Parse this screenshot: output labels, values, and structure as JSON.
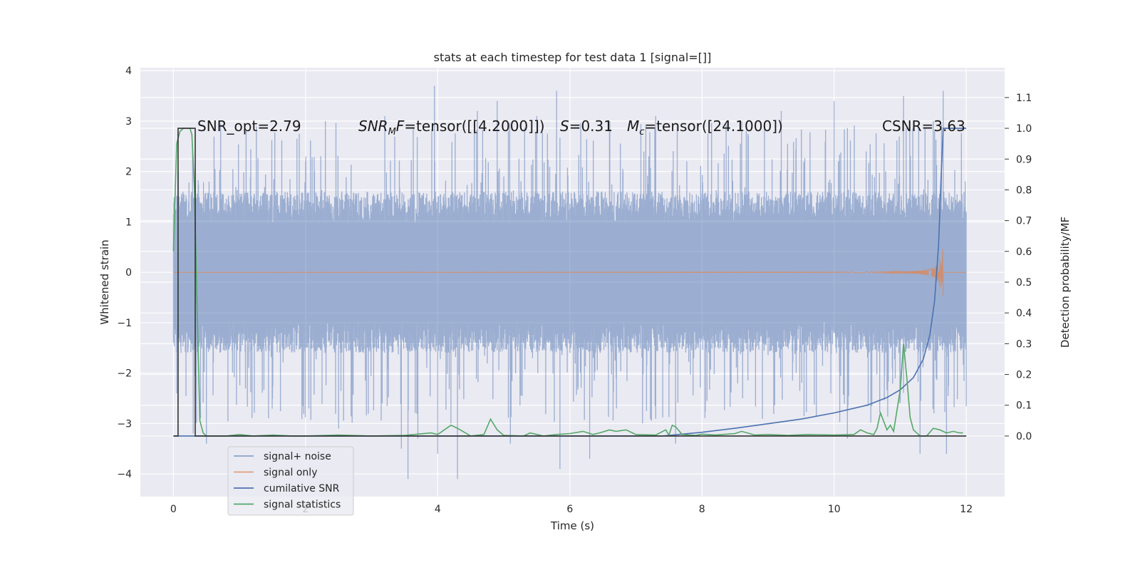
{
  "chart_data": {
    "type": "line",
    "title": "stats at each timestep for test data 1 [signal=[]]",
    "xlabel": "Time (s)",
    "ylabel_left": "Whitened strain",
    "ylabel_right": "Detection probability/MF",
    "xlim": [
      -0.5,
      12.58
    ],
    "ylim_left": [
      -4.45,
      4.06
    ],
    "ylim_right": [
      -0.197,
      1.197
    ],
    "x_ticks": [
      0,
      2,
      4,
      6,
      8,
      10,
      12
    ],
    "y_ticks_left": [
      -4,
      -3,
      -2,
      -1,
      0,
      1,
      2,
      3,
      4
    ],
    "y_ticks_right": [
      0.0,
      0.1,
      0.2,
      0.3,
      0.4,
      0.5,
      0.6,
      0.7,
      0.8,
      0.9,
      1.0,
      1.1
    ],
    "grid": true,
    "legend_placement": "lower-left",
    "annotations": {
      "snr_opt": "SNR_opt=2.79",
      "snr_mf_sym": "SNR",
      "snr_mf_sub": "M",
      "snr_mf_f": "F",
      "snr_mf_val": "=tensor([[4.2000]])",
      "s_sym": "S",
      "s_val": "=0.31",
      "mc_sym": "M",
      "mc_sub": "c",
      "mc_val": "=tensor([24.1000])",
      "csnr": "CSNR=3.63"
    },
    "series": [
      {
        "name": "signal+ noise",
        "axis": "left",
        "color": "#4c72b0",
        "alpha": 0.5,
        "t_range": [
          0,
          12
        ],
        "typical_range": [
          -1.6,
          1.6
        ],
        "peaks": [
          [
            0.05,
            -2.4
          ],
          [
            0.3,
            -3.2
          ],
          [
            0.5,
            -3.4
          ],
          [
            1.1,
            2.8
          ],
          [
            2.05,
            -2.7
          ],
          [
            2.3,
            3.0
          ],
          [
            2.5,
            -3.1
          ],
          [
            3.2,
            3.1
          ],
          [
            3.45,
            -3.5
          ],
          [
            3.55,
            -4.1
          ],
          [
            3.7,
            -3.3
          ],
          [
            3.95,
            3.7
          ],
          [
            4.0,
            -3.6
          ],
          [
            4.2,
            -3.0
          ],
          [
            4.3,
            -4.1
          ],
          [
            4.6,
            3.2
          ],
          [
            4.9,
            3.4
          ],
          [
            5.1,
            -3.4
          ],
          [
            5.5,
            3.1
          ],
          [
            5.8,
            3.6
          ],
          [
            5.85,
            -3.9
          ],
          [
            6.3,
            -3.7
          ],
          [
            6.6,
            3.0
          ],
          [
            7.1,
            -3.0
          ],
          [
            7.3,
            3.1
          ],
          [
            7.6,
            -3.4
          ],
          [
            8.6,
            3.0
          ],
          [
            9.2,
            3.2
          ],
          [
            10.0,
            3.4
          ],
          [
            10.2,
            -3.3
          ],
          [
            11.05,
            3.5
          ],
          [
            11.3,
            -3.6
          ],
          [
            11.5,
            3.0
          ],
          [
            11.65,
            3.6
          ],
          [
            11.7,
            -3.6
          ]
        ]
      },
      {
        "name": "signal only",
        "axis": "left",
        "color": "#dd8452",
        "chirp": {
          "t_end": 11.65,
          "peak_amplitude": 0.65
        }
      },
      {
        "name": "cumilative SNR",
        "axis": "right",
        "color": "#4c72b0",
        "x": [
          0,
          7.4,
          8.0,
          8.5,
          9.0,
          9.5,
          10.0,
          10.5,
          10.8,
          11.0,
          11.2,
          11.35,
          11.45,
          11.52,
          11.58,
          11.62,
          11.65,
          11.66,
          12.0
        ],
        "y": [
          0.0,
          0.0,
          0.012,
          0.025,
          0.04,
          0.055,
          0.075,
          0.1,
          0.125,
          0.15,
          0.19,
          0.25,
          0.33,
          0.44,
          0.62,
          0.85,
          1.0,
          1.0,
          1.0
        ]
      },
      {
        "name": "signal statistics",
        "axis": "right",
        "color": "#55a868",
        "x": [
          0.0,
          0.05,
          0.1,
          0.15,
          0.2,
          0.25,
          0.28,
          0.32,
          0.36,
          0.4,
          0.45,
          0.5,
          0.6,
          0.8,
          1.0,
          1.2,
          1.5,
          1.8,
          2.0,
          2.5,
          3.0,
          3.5,
          3.9,
          4.0,
          4.1,
          4.2,
          4.3,
          4.5,
          4.7,
          4.8,
          4.9,
          5.0,
          5.3,
          5.4,
          5.6,
          5.8,
          6.0,
          6.2,
          6.35,
          6.45,
          6.6,
          6.7,
          6.85,
          7.0,
          7.3,
          7.45,
          7.5,
          7.55,
          7.6,
          7.7,
          7.9,
          8.0,
          8.2,
          8.5,
          8.6,
          8.8,
          9.0,
          9.3,
          9.6,
          10.0,
          10.3,
          10.4,
          10.5,
          10.6,
          10.65,
          10.7,
          10.8,
          10.85,
          10.9,
          11.0,
          11.05,
          11.1,
          11.15,
          11.2,
          11.3,
          11.4,
          11.5,
          11.6,
          11.7,
          11.8,
          11.9,
          11.95
        ],
        "y": [
          0.6,
          0.95,
          0.99,
          1.0,
          1.0,
          1.0,
          0.98,
          0.8,
          0.4,
          0.05,
          0.01,
          0.0,
          0.0,
          0.0,
          0.005,
          0.0,
          0.003,
          0.0,
          0.0,
          0.003,
          0.0,
          0.002,
          0.01,
          0.005,
          0.02,
          0.035,
          0.025,
          0.0,
          0.005,
          0.055,
          0.02,
          0.002,
          0.0,
          0.01,
          0.0,
          0.005,
          0.008,
          0.015,
          0.005,
          0.01,
          0.02,
          0.015,
          0.02,
          0.005,
          0.003,
          0.02,
          0.003,
          0.035,
          0.03,
          0.005,
          0.002,
          0.006,
          0.003,
          0.008,
          0.015,
          0.003,
          0.005,
          0.002,
          0.005,
          0.003,
          0.005,
          0.02,
          0.01,
          0.005,
          0.025,
          0.075,
          0.02,
          0.035,
          0.015,
          0.15,
          0.3,
          0.19,
          0.06,
          0.02,
          0.0,
          0.0,
          0.025,
          0.02,
          0.01,
          0.015,
          0.01,
          0.01
        ]
      },
      {
        "name": "",
        "axis": "right",
        "color": "#333333",
        "x": [
          0.0,
          0.07,
          0.07,
          0.33,
          0.33,
          12.0
        ],
        "y": [
          0.0,
          0.0,
          1.0,
          1.0,
          0.0,
          0.0
        ]
      }
    ]
  }
}
